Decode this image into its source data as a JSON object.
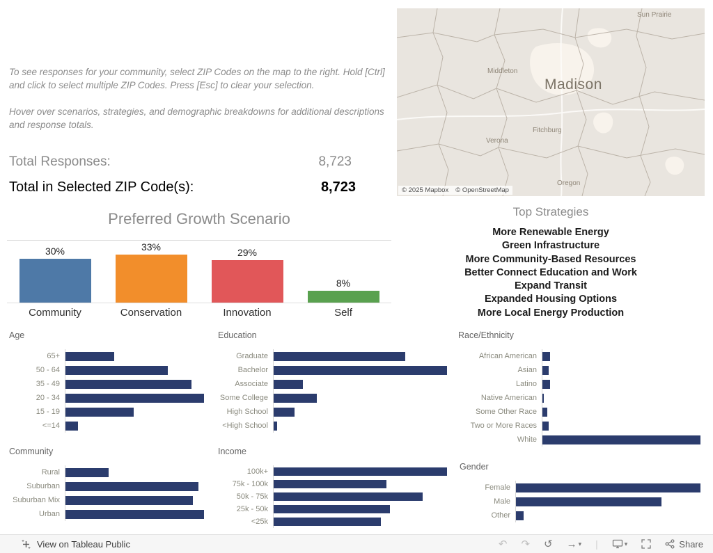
{
  "instructions": {
    "para1": "To see responses for your community, select ZIP Codes on the map to the right. Hold [Ctrl] and click to select multiple ZIP Codes. Press [Esc] to clear your selection.",
    "para2": "Hover over scenarios, strategies, and demographic breakdowns for additional descriptions and response totals."
  },
  "totals": {
    "total_label": "Total Responses:",
    "total_value": "8,723",
    "selected_label": "Total in Selected ZIP Code(s):",
    "selected_value": "8,723"
  },
  "map": {
    "attribution_mapbox": "© 2025 Mapbox",
    "attribution_osm": "© OpenStreetMap",
    "labels": [
      "Sun Prairie",
      "Middleton",
      "Madison",
      "Fitchburg",
      "Verona",
      "Oregon"
    ]
  },
  "top_strategies": {
    "title": "Top Strategies",
    "items": [
      "More Renewable Energy",
      "Green Infrastructure",
      "More Community-Based Resources",
      "Better Connect Education and Work",
      "Expand Transit",
      "Expanded Housing Options",
      "More Local Energy Production"
    ]
  },
  "toolbar": {
    "view_on_label": "View on Tableau Public",
    "share_label": "Share"
  },
  "colors": {
    "demographic_bar": "#2b3c6d",
    "scenario_palette": [
      "#4e79a7",
      "#f28e2b",
      "#e15759",
      "#59a14f"
    ],
    "muted_text": "#8b8b8b"
  },
  "chart_data": [
    {
      "type": "bar",
      "orientation": "vertical",
      "title": "Preferred Growth Scenario",
      "categories": [
        "Community",
        "Conservation",
        "Innovation",
        "Self"
      ],
      "values": [
        30,
        33,
        29,
        8
      ],
      "value_labels": [
        "30%",
        "33%",
        "29%",
        "8%"
      ],
      "colors": [
        "#4e79a7",
        "#f28e2b",
        "#e15759",
        "#59a14f"
      ],
      "units": "percent of responses",
      "ylim": [
        0,
        35
      ]
    },
    {
      "type": "bar",
      "orientation": "horizontal",
      "title": "Age",
      "categories": [
        "65+",
        "50 - 64",
        "35 - 49",
        "20 - 34",
        "15 - 19",
        "<=14"
      ],
      "values": [
        35,
        74,
        91,
        100,
        49,
        9
      ],
      "units": "relative length, % of longest bar (no axis values shown)"
    },
    {
      "type": "bar",
      "orientation": "horizontal",
      "title": "Education",
      "categories": [
        "Graduate",
        "Bachelor",
        "Associate",
        "Some College",
        "High School",
        "<High School"
      ],
      "values": [
        76,
        100,
        17,
        25,
        12,
        2
      ],
      "units": "relative length, % of longest bar (no axis values shown)"
    },
    {
      "type": "bar",
      "orientation": "horizontal",
      "title": "Race/Ethnicity",
      "categories": [
        "African American",
        "Asian",
        "Latino",
        "Native American",
        "Some Other Race",
        "Two or More Races",
        "White"
      ],
      "values": [
        5,
        4,
        5,
        1,
        3,
        4,
        100
      ],
      "units": "relative length, % of longest bar (no axis values shown)"
    },
    {
      "type": "bar",
      "orientation": "horizontal",
      "title": "Community",
      "categories": [
        "Rural",
        "Suburban",
        "Suburban Mix",
        "Urban"
      ],
      "values": [
        31,
        96,
        92,
        100
      ],
      "units": "relative length, % of longest bar (no axis values shown)"
    },
    {
      "type": "bar",
      "orientation": "horizontal",
      "title": "Income",
      "categories": [
        "100k+",
        "75k - 100k",
        "50k - 75k",
        "25k - 50k",
        "<25k"
      ],
      "values": [
        100,
        65,
        86,
        67,
        62
      ],
      "units": "relative length, % of longest bar (no axis values shown)"
    },
    {
      "type": "bar",
      "orientation": "horizontal",
      "title": "Gender",
      "categories": [
        "Female",
        "Male",
        "Other"
      ],
      "values": [
        100,
        79,
        4
      ],
      "units": "relative length, % of longest bar (no axis values shown)"
    }
  ]
}
